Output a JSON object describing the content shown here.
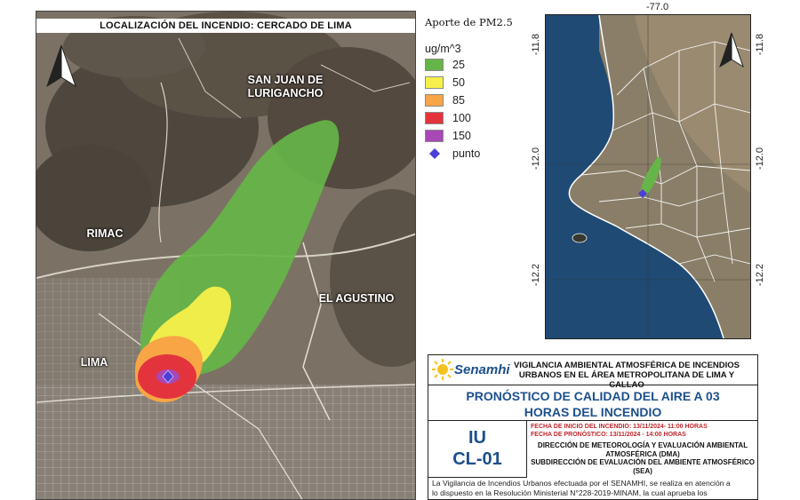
{
  "main_map": {
    "title": "LOCALIZACIÓN DEL INCENDIO: CERCADO DE LIMA",
    "districts": {
      "sjl": "SAN JUAN DE\nLURIGANCHO",
      "rimac": "RIMAC",
      "el_agustino": "EL AGUSTINO",
      "lima": "LIMA"
    },
    "north_arrow_icon": "north-arrow-icon"
  },
  "legend": {
    "title": "Aporte de PM2.5",
    "unit": "ug/m^3",
    "items": [
      {
        "label": "25",
        "color": "#66b548"
      },
      {
        "label": "50",
        "color": "#f7f04a"
      },
      {
        "label": "85",
        "color": "#f7a545"
      },
      {
        "label": "100",
        "color": "#e3343d"
      },
      {
        "label": "150",
        "color": "#a848b6"
      }
    ],
    "point": {
      "label": "punto",
      "color": "#4b3fd8"
    }
  },
  "inset_map": {
    "lon_label": "-77.0",
    "lat_labels": {
      "top": "-11.8",
      "middle": "-12.0",
      "bottom": "-12.2"
    },
    "north_arrow_icon": "north-arrow-icon"
  },
  "info": {
    "org_name": "Senamhi",
    "org_line1": "VIGILANCIA AMBIENTAL ATMOSFÉRICA DE INCENDIOS",
    "org_line2": "URBANOS EN EL ÁREA METROPOLITANA DE LIMA Y CALLAO",
    "forecast_line1": "PRONÓSTICO DE CALIDAD DEL AIRE A 03",
    "forecast_line2": "HORAS DEL INCENDIO",
    "code_line1": "IU",
    "code_line2": "CL-01",
    "start_date": "FECHA DE INICIO DEL INCENDIO: 13/11/2024- 11:00 HORAS",
    "forecast_date": "FECHA DE PRONÓSTICO: 13/11/2024 - 14:00 HORAS",
    "direction": "DIRECCIÓN DE METEOROLOGÍA Y EVALUACIÓN AMBIENTAL ATMOSFÉRICA (DMA)",
    "subdirection": "SUBDIRECCIÓN DE EVALUACIÓN DEL AMBIENTE ATMOSFÉRICO (SEA)",
    "body_line1": "La Vigilancia de Incendios Urbanos efectuada por el SENAMHI, se realiza en atención a",
    "body_line2": "lo dispuesto en la Resolución Ministerial N°228-2019-MINAM, la cual aprueba los"
  }
}
